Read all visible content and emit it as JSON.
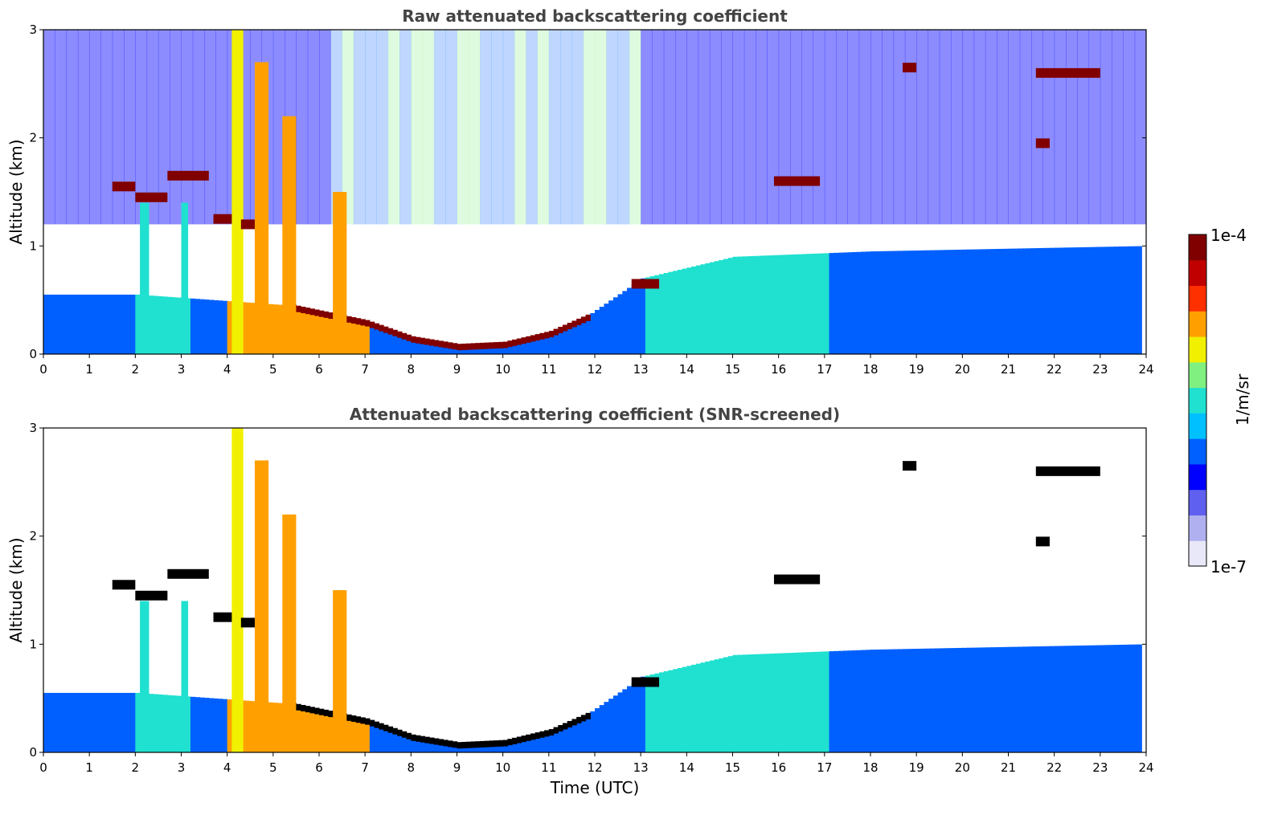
{
  "chart_data": [
    {
      "type": "heatmap",
      "title": "Raw attenuated backscattering coefficient",
      "xlabel": "",
      "ylabel": "Altitude (km)",
      "xlim": [
        0,
        24
      ],
      "ylim": [
        0,
        3
      ],
      "xticks": [
        "0",
        "1",
        "2",
        "3",
        "4",
        "5",
        "6",
        "7",
        "8",
        "9",
        "10",
        "11",
        "12",
        "13",
        "14",
        "15",
        "16",
        "17",
        "18",
        "19",
        "20",
        "21",
        "22",
        "23",
        "24"
      ],
      "yticks": [
        "0",
        "1",
        "2",
        "3"
      ],
      "description_features": {
        "boundary_layer_top_km": [
          {
            "t": 0,
            "h": 0.55
          },
          {
            "t": 2,
            "h": 0.55
          },
          {
            "t": 5.3,
            "h": 0.45
          },
          {
            "t": 7,
            "h": 0.3
          },
          {
            "t": 8,
            "h": 0.15
          },
          {
            "t": 9,
            "h": 0.08
          },
          {
            "t": 10,
            "h": 0.1
          },
          {
            "t": 11,
            "h": 0.2
          },
          {
            "t": 11.8,
            "h": 0.35
          },
          {
            "t": 13,
            "h": 0.7
          },
          {
            "t": 15,
            "h": 0.9
          },
          {
            "t": 18,
            "h": 0.95
          },
          {
            "t": 24,
            "h": 1.0
          }
        ],
        "cloud_layers": [
          {
            "t_start": 1.5,
            "t_end": 2.0,
            "h": 1.55
          },
          {
            "t_start": 2.0,
            "t_end": 2.7,
            "h": 1.45
          },
          {
            "t_start": 2.7,
            "t_end": 3.6,
            "h": 1.65
          },
          {
            "t_start": 3.7,
            "t_end": 4.1,
            "h": 1.25
          },
          {
            "t_start": 4.3,
            "t_end": 4.6,
            "h": 1.2
          },
          {
            "t_start": 15.9,
            "t_end": 16.9,
            "h": 1.6
          },
          {
            "t_start": 18.7,
            "t_end": 19.0,
            "h": 2.65
          },
          {
            "t_start": 21.6,
            "t_end": 23.0,
            "h": 2.6
          },
          {
            "t_start": 21.6,
            "t_end": 21.9,
            "h": 1.95
          },
          {
            "t_start": 12.8,
            "t_end": 13.4,
            "h": 0.65
          }
        ]
      }
    },
    {
      "type": "heatmap",
      "title": "Attenuated backscattering coefficient (SNR-screened)",
      "xlabel": "Time (UTC)",
      "ylabel": "Altitude (km)",
      "xlim": [
        0,
        24
      ],
      "ylim": [
        0,
        3
      ],
      "xticks": [
        "0",
        "1",
        "2",
        "3",
        "4",
        "5",
        "6",
        "7",
        "8",
        "9",
        "10",
        "11",
        "12",
        "13",
        "14",
        "15",
        "16",
        "17",
        "18",
        "19",
        "20",
        "21",
        "22",
        "23",
        "24"
      ],
      "yticks": [
        "0",
        "1",
        "2",
        "3"
      ]
    }
  ],
  "colorbar": {
    "label": "1/m/sr",
    "max_label": "1e-4",
    "min_label": "1e-7",
    "colormap": "jet",
    "colors": [
      "#e8e8f8",
      "#b0b0f0",
      "#6060f0",
      "#0000ff",
      "#0060ff",
      "#00c0ff",
      "#20e0d0",
      "#80f080",
      "#f0f000",
      "#ffa000",
      "#ff3000",
      "#c00000",
      "#800000"
    ]
  }
}
